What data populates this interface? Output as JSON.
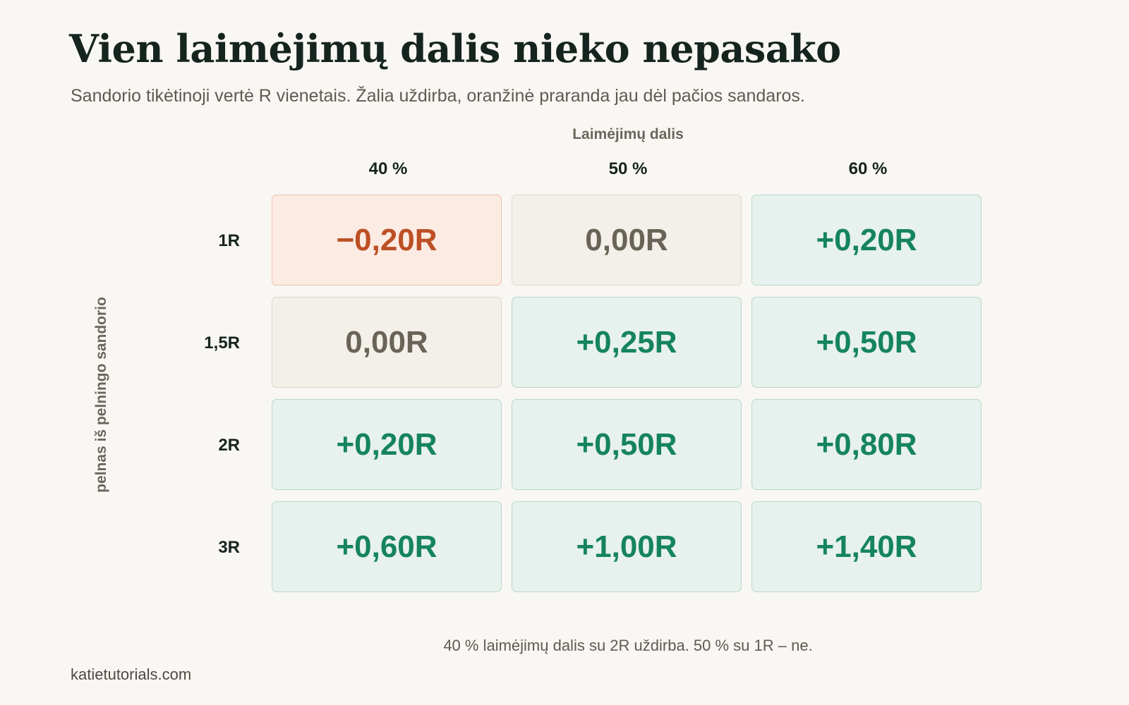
{
  "title": "Vien laimėjimų dalis nieko nepasako",
  "subtitle": "Sandorio tikėtinoji vertė R vienetais. Žalia uždirba, oranžinė praranda jau dėl pačios sandaros.",
  "note": "40 % laimėjimų dalis su 2R uždirba. 50 % su 1R – ne.",
  "footer": "katietutorials.com",
  "colors": {
    "background": "#f9f7f3",
    "positive": "#15845e",
    "neutral": "#6a6458",
    "negative": "#bd4f25"
  },
  "chart_data": {
    "type": "heatmap",
    "x_axis_title": "Laimėjimų dalis",
    "y_axis_title": "pelnas iš pelningo sandorio",
    "columns": [
      "40 %",
      "50 %",
      "60 %"
    ],
    "rows": [
      "1R",
      "1,5R",
      "2R",
      "3R"
    ],
    "values": [
      [
        -0.2,
        0.0,
        0.2
      ],
      [
        0.0,
        0.25,
        0.5
      ],
      [
        0.2,
        0.5,
        0.8
      ],
      [
        0.6,
        1.0,
        1.4
      ]
    ],
    "labels": [
      [
        "−0,20R",
        "0,00R",
        "+0,20R"
      ],
      [
        "0,00R",
        "+0,25R",
        "+0,50R"
      ],
      [
        "+0,20R",
        "+0,50R",
        "+0,80R"
      ],
      [
        "+0,60R",
        "+1,00R",
        "+1,40R"
      ]
    ]
  }
}
